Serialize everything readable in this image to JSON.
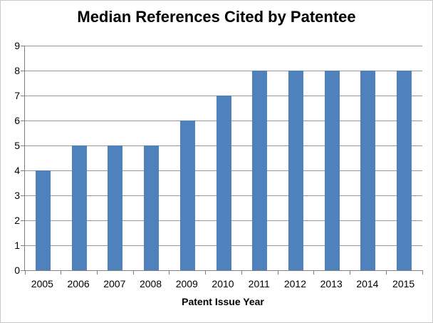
{
  "chart_data": {
    "type": "bar",
    "title": "Median References Cited by Patentee",
    "xlabel": "Patent Issue Year",
    "ylabel": "",
    "categories": [
      "2005",
      "2006",
      "2007",
      "2008",
      "2009",
      "2010",
      "2011",
      "2012",
      "2013",
      "2014",
      "2015"
    ],
    "values": [
      4,
      5,
      5,
      5,
      6,
      7,
      8,
      8,
      8,
      8,
      8
    ],
    "ylim": [
      0,
      9
    ],
    "ytick_step": 1,
    "grid": true,
    "legend_position": "none",
    "colors": {
      "bar": "#4f81bd",
      "gridline": "#969696",
      "axis": "#808080",
      "text": "#000000",
      "chart_border": "#c9c9c9",
      "background": "#ffffff"
    }
  }
}
